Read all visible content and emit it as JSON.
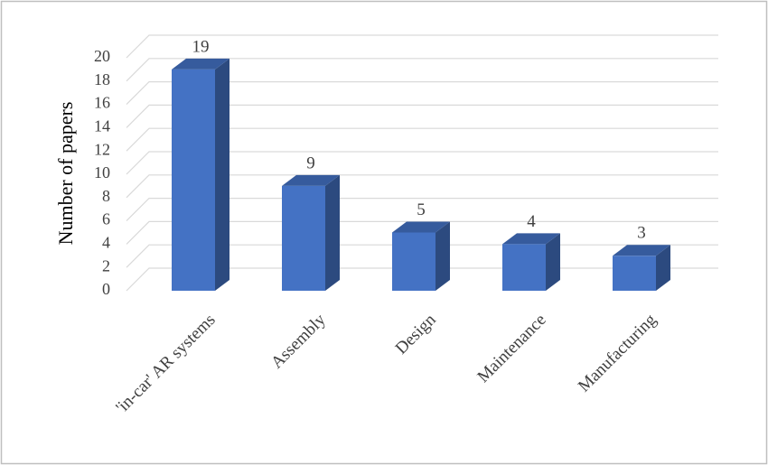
{
  "chart_data": {
    "type": "bar3d",
    "y_label": "Number of papers",
    "categories": [
      "'in-car' AR systems",
      "Assembly",
      "Design",
      "Maintenance",
      "Manufacturing"
    ],
    "values": [
      19,
      9,
      5,
      4,
      3
    ],
    "color": "#4472c4",
    "ylim": [
      0,
      20
    ],
    "yticks": [
      0,
      2,
      4,
      6,
      8,
      10,
      12,
      14,
      16,
      18,
      20
    ],
    "grid": true
  }
}
